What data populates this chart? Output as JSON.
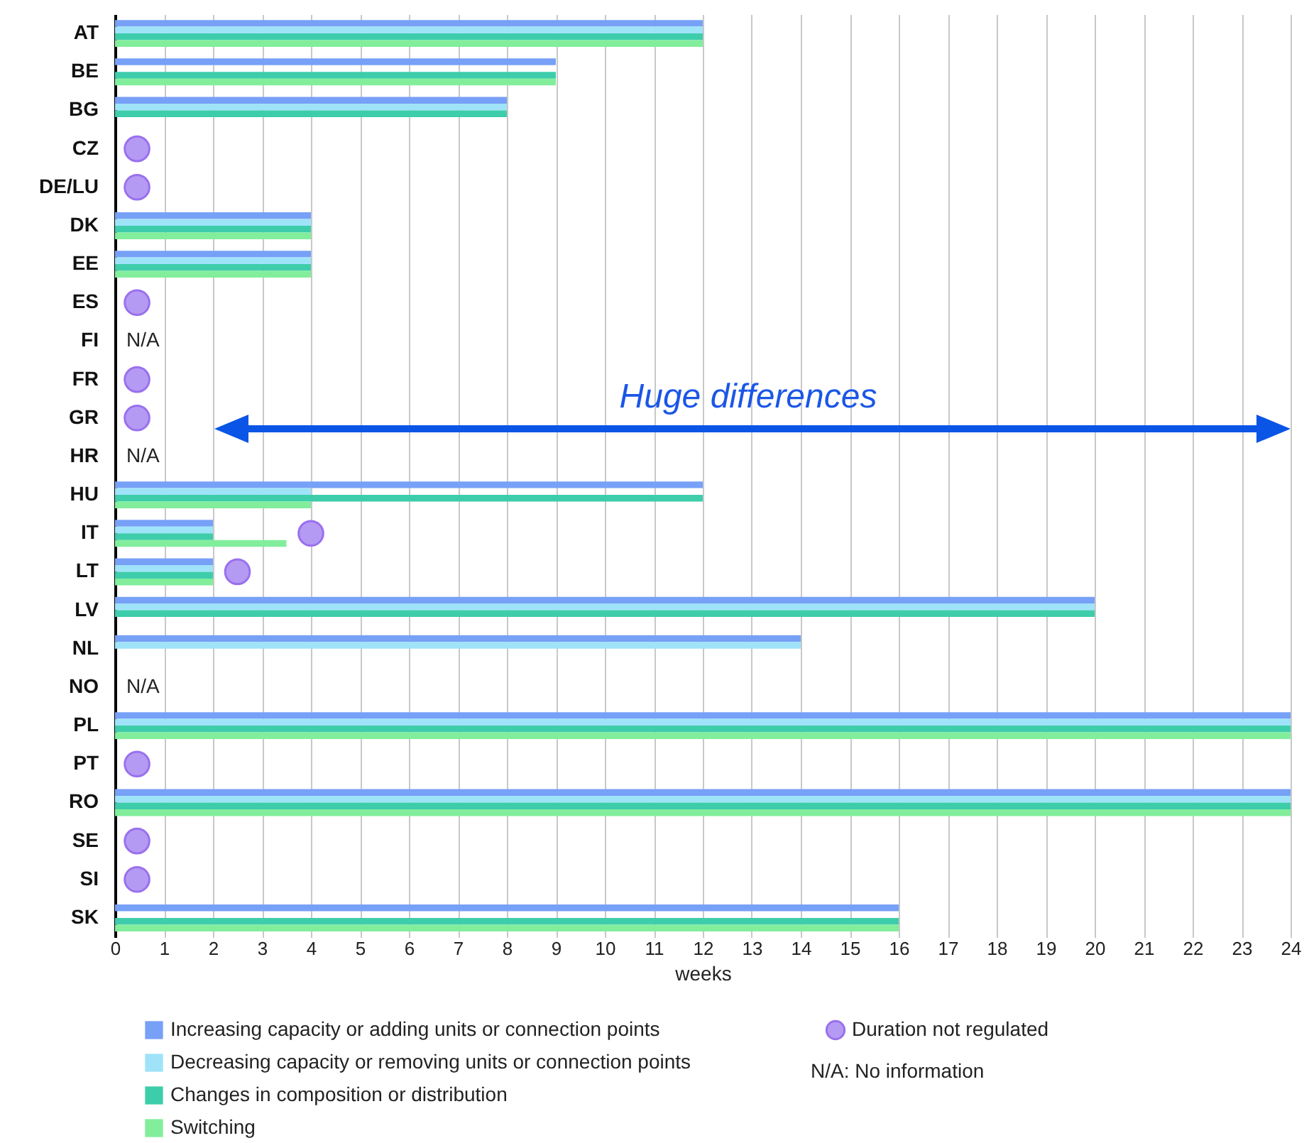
{
  "chart_data": {
    "type": "bar",
    "orientation": "horizontal",
    "xlabel": "weeks",
    "categories": [
      "AT",
      "BE",
      "BG",
      "CZ",
      "DE/LU",
      "DK",
      "EE",
      "ES",
      "FI",
      "FR",
      "GR",
      "HR",
      "HU",
      "IT",
      "LT",
      "LV",
      "NL",
      "NO",
      "PL",
      "PT",
      "RO",
      "SE",
      "SI",
      "SK"
    ],
    "series": [
      {
        "name": "Increasing capacity or adding units or connection points",
        "color": "#77a0f7",
        "values": [
          12,
          9,
          8,
          null,
          null,
          4,
          4,
          null,
          null,
          null,
          null,
          null,
          12,
          2,
          2,
          20,
          14,
          null,
          24,
          null,
          24,
          null,
          null,
          16
        ]
      },
      {
        "name": "Decreasing capacity or removing units or connection points",
        "color": "#9fe3f9",
        "values": [
          12,
          null,
          8,
          null,
          null,
          4,
          4,
          null,
          null,
          null,
          null,
          null,
          4,
          2,
          2,
          20,
          14,
          null,
          24,
          null,
          24,
          null,
          null,
          null
        ]
      },
      {
        "name": "Changes in composition or distribution",
        "color": "#3ecdab",
        "values": [
          12,
          9,
          8,
          null,
          null,
          4,
          4,
          null,
          null,
          null,
          null,
          null,
          12,
          2,
          2,
          20,
          null,
          null,
          24,
          null,
          24,
          null,
          null,
          16
        ]
      },
      {
        "name": "Switching",
        "color": "#82ee9b",
        "values": [
          12,
          9,
          null,
          null,
          null,
          4,
          4,
          null,
          null,
          null,
          null,
          null,
          4,
          3.5,
          2,
          null,
          null,
          null,
          24,
          null,
          24,
          null,
          null,
          16
        ]
      },
      {
        "name": "Duration not regulated",
        "type": "scatter",
        "color": "#b59af3",
        "values": [
          null,
          null,
          null,
          0.45,
          0.45,
          null,
          null,
          0.45,
          null,
          0.45,
          0.45,
          null,
          null,
          4,
          2.5,
          null,
          null,
          null,
          null,
          0.45,
          null,
          0.45,
          0.45,
          null
        ]
      }
    ],
    "xlim": [
      0,
      24
    ],
    "xticks": [
      0,
      1,
      2,
      3,
      4,
      5,
      6,
      7,
      8,
      9,
      10,
      11,
      12,
      13,
      14,
      15,
      16,
      17,
      18,
      19,
      20,
      21,
      22,
      23,
      24
    ],
    "grid": "x",
    "legend": "bottom",
    "marker": "circle",
    "annotations": [
      "N/A",
      "N/A",
      "N/A",
      "Huge differences",
      "N/A: No information"
    ]
  }
}
